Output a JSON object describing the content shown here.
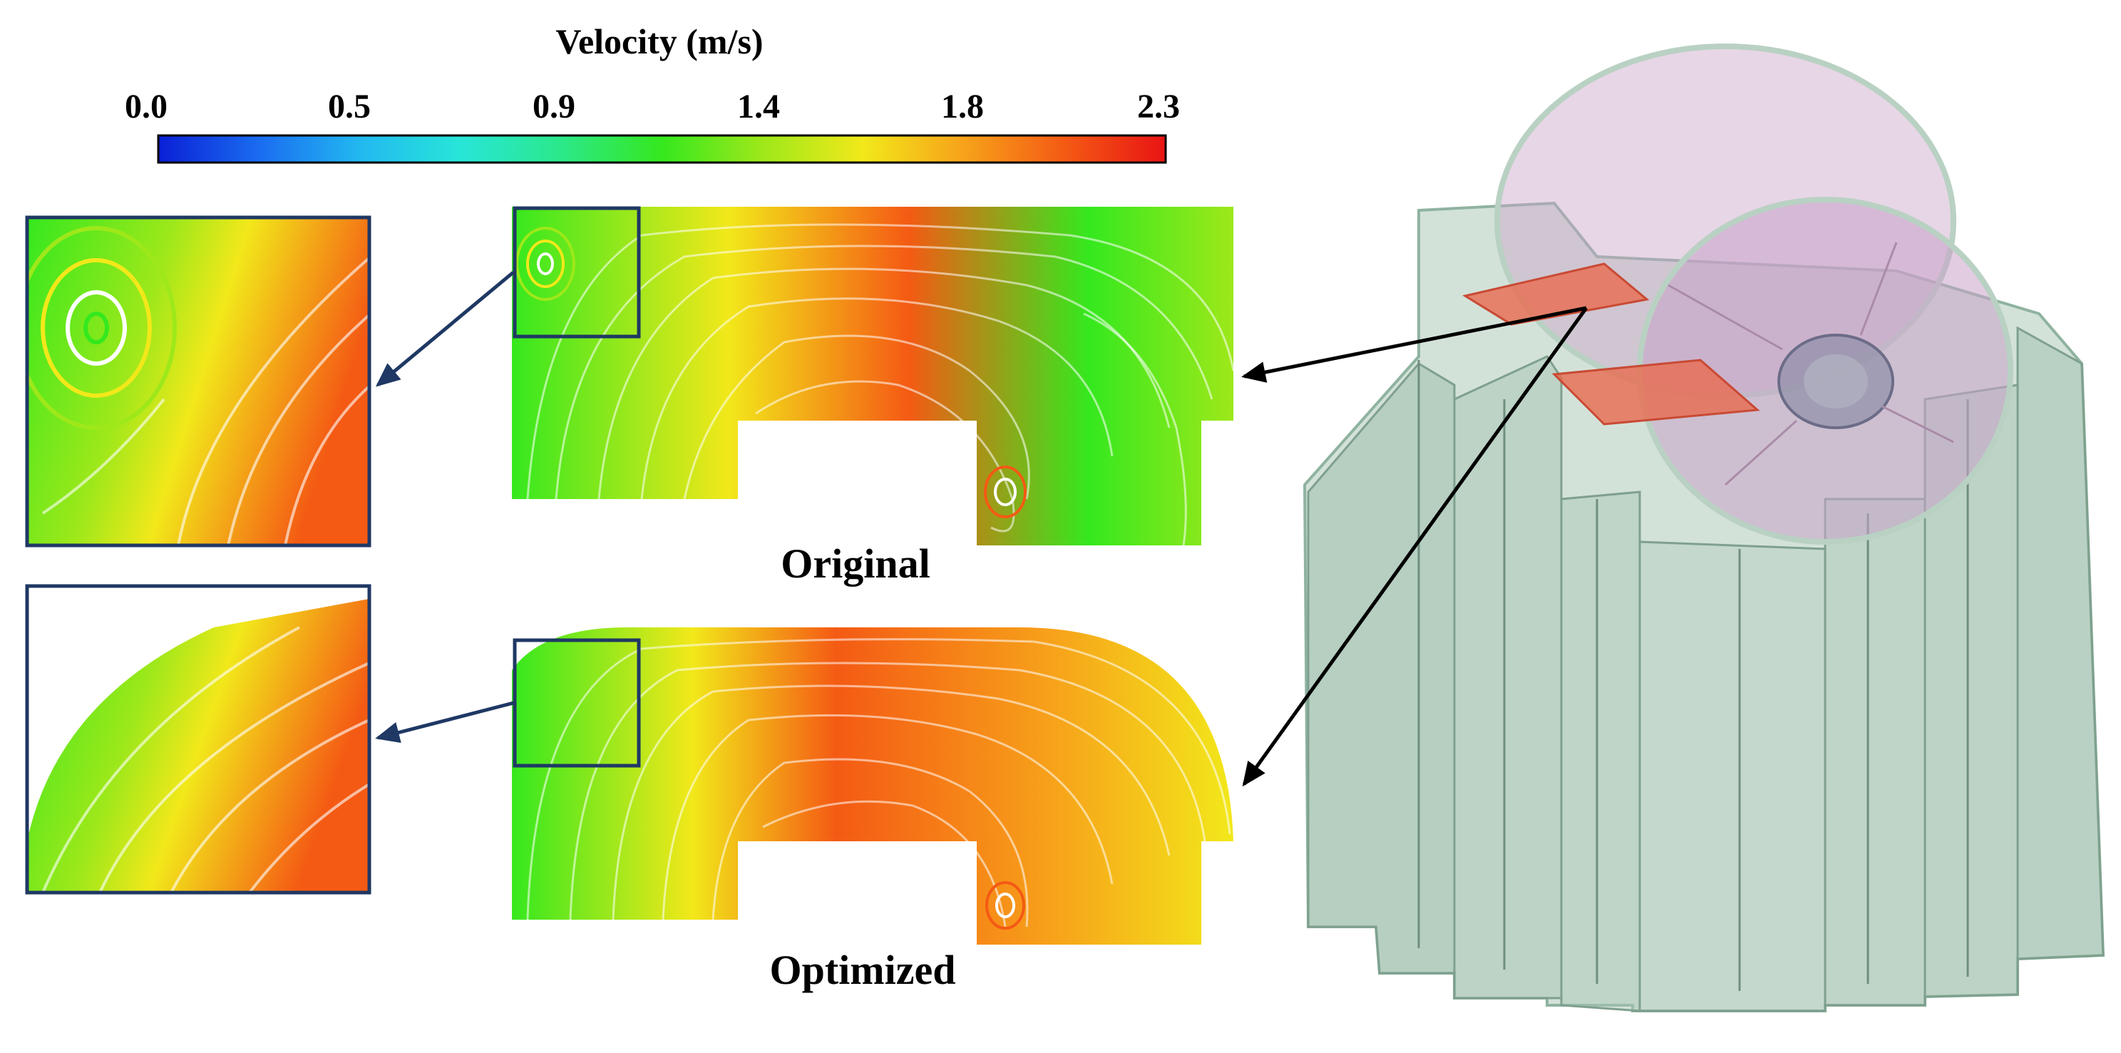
{
  "colorbar": {
    "title": "Velocity (m/s)",
    "ticks": [
      "0.0",
      "0.5",
      "0.9",
      "1.4",
      "1.8",
      "2.3"
    ],
    "min": 0.0,
    "max": 2.3,
    "colors": [
      "#0a1fd6",
      "#1a6cf0",
      "#22b8f0",
      "#27e6d8",
      "#2be88a",
      "#35e81e",
      "#9ee81a",
      "#f2e81a",
      "#f7a21a",
      "#f45a14",
      "#e81414"
    ]
  },
  "panels": {
    "original_label": "Original",
    "optimized_label": "Optimized"
  },
  "colors": {
    "frame": "#1f3864",
    "arrow": "#000000",
    "body_green": "#9fbfae",
    "impeller_pink": "#c9a3c8",
    "section_red": "#e86a4f"
  }
}
